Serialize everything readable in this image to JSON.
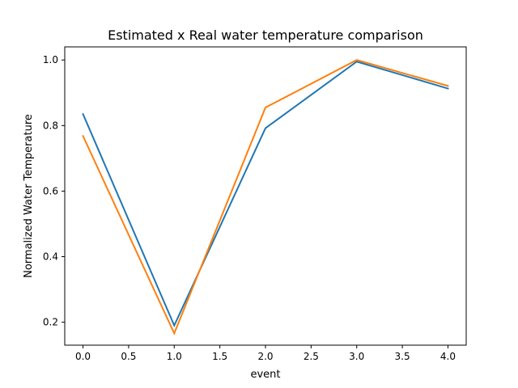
{
  "chart_data": {
    "type": "line",
    "title": "Estimated x Real water temperature comparison",
    "xlabel": "event",
    "ylabel": "Normalized Water Temperature",
    "x": [
      0,
      1,
      2,
      3,
      4
    ],
    "xlim": [
      -0.2,
      4.2
    ],
    "ylim": [
      0.13,
      1.04
    ],
    "xticks": [
      0.0,
      0.5,
      1.0,
      1.5,
      2.0,
      2.5,
      3.0,
      3.5,
      4.0
    ],
    "xtick_labels": [
      "0.0",
      "0.5",
      "1.0",
      "1.5",
      "2.0",
      "2.5",
      "3.0",
      "3.5",
      "4.0"
    ],
    "yticks": [
      0.2,
      0.4,
      0.6,
      0.8,
      1.0
    ],
    "ytick_labels": [
      "0.2",
      "0.4",
      "0.6",
      "0.8",
      "1.0"
    ],
    "grid": false,
    "series": [
      {
        "values": [
          0.835,
          0.19,
          0.792,
          0.995,
          0.913
        ],
        "color": "#1f77b4"
      },
      {
        "values": [
          0.768,
          0.166,
          0.855,
          1.0,
          0.921
        ],
        "color": "#ff7f0e"
      }
    ]
  }
}
